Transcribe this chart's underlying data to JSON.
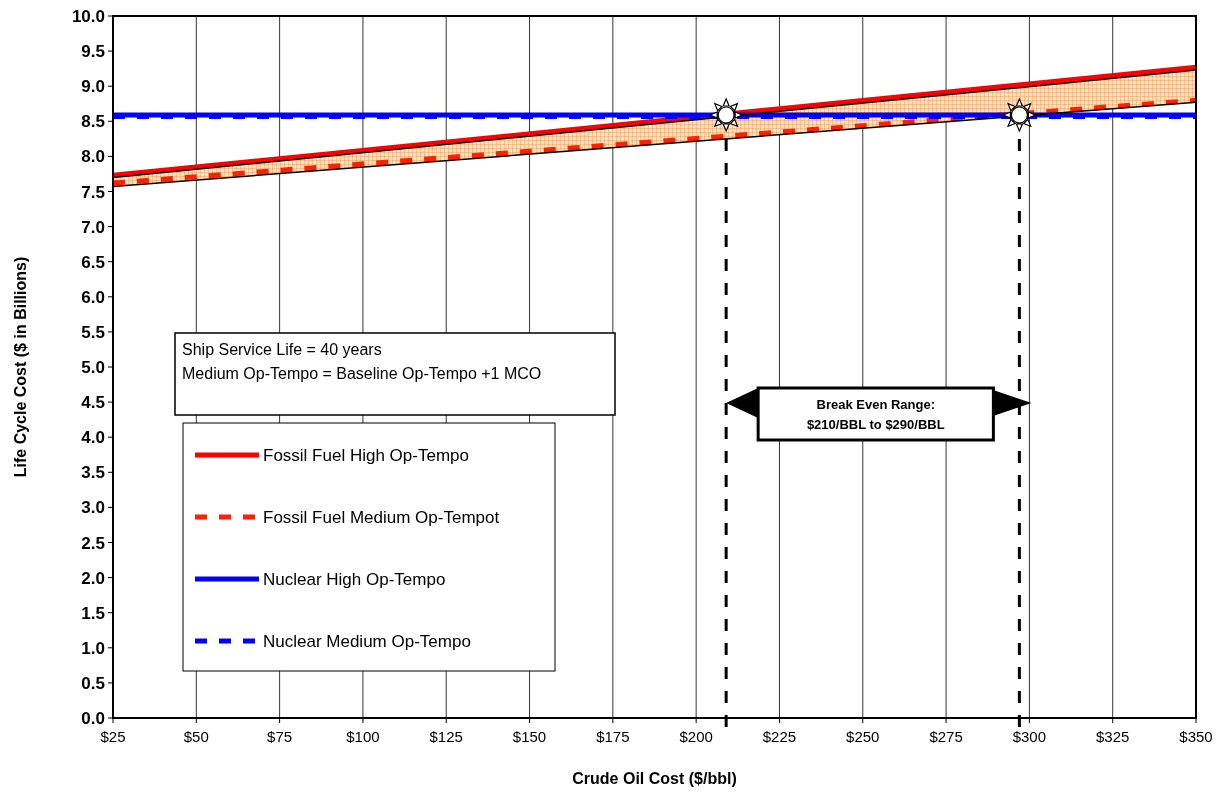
{
  "chart_data": {
    "type": "line",
    "xlabel": "Crude Oil Cost ($/bbl)",
    "ylabel": "Life Cycle Cost ($ in Billions)",
    "x": [
      25,
      350
    ],
    "series": [
      {
        "name": "Fossil Fuel High Op-Tempo",
        "color": "#ff0000",
        "line_style": "solid",
        "values": [
          7.73,
          9.27
        ]
      },
      {
        "name": "Fossil Fuel Medium Op-Tempot",
        "color": "#ff2000",
        "line_style": "dashed",
        "values": [
          7.62,
          8.8
        ],
        "lower": [
          7.57,
          8.77
        ],
        "upper": [
          7.7,
          9.23
        ]
      },
      {
        "name": "Nuclear High Op-Tempo",
        "color": "#0000ff",
        "line_style": "solid",
        "values": [
          8.59,
          8.59
        ]
      },
      {
        "name": "Nuclear Medium Op-Tempo",
        "color": "#0000ff",
        "line_style": "dashed",
        "values": [
          8.57,
          8.57
        ]
      },
      {
        "color": "#000000",
        "line_style": "solid",
        "values": [
          7.57,
          8.77
        ]
      },
      {
        "color": "#000000",
        "line_style": "solid",
        "values": [
          7.7,
          9.23
        ]
      }
    ],
    "xlim": [
      25,
      350
    ],
    "xticks": [
      {
        "value": 25,
        "label": "$25"
      },
      {
        "value": 50,
        "label": "$50"
      },
      {
        "value": 75,
        "label": "$75"
      },
      {
        "value": 100,
        "label": "$100"
      },
      {
        "value": 125,
        "label": "$125"
      },
      {
        "value": 150,
        "label": "$150"
      },
      {
        "value": 175,
        "label": "$175"
      },
      {
        "value": 200,
        "label": "$200"
      },
      {
        "value": 225,
        "label": "$225"
      },
      {
        "value": 250,
        "label": "$250"
      },
      {
        "value": 275,
        "label": "$275"
      },
      {
        "value": 300,
        "label": "$300"
      },
      {
        "value": 325,
        "label": "$325"
      },
      {
        "value": 350,
        "label": "$350"
      }
    ],
    "ylim": [
      0,
      10
    ],
    "yticks": [
      {
        "value": 0,
        "label": "0.0"
      },
      {
        "value": 0.5,
        "label": "0.5"
      },
      {
        "value": 1,
        "label": "1.0"
      },
      {
        "value": 1.5,
        "label": "1.5"
      },
      {
        "value": 2,
        "label": "2.0"
      },
      {
        "value": 2.5,
        "label": "2.5"
      },
      {
        "value": 3,
        "label": "3.0"
      },
      {
        "value": 3.5,
        "label": "3.5"
      },
      {
        "value": 4,
        "label": "4.0"
      },
      {
        "value": 4.5,
        "label": "4.5"
      },
      {
        "value": 5,
        "label": "5.0"
      },
      {
        "value": 5.5,
        "label": "5.5"
      },
      {
        "value": 6,
        "label": "6.0"
      },
      {
        "value": 6.5,
        "label": "6.5"
      },
      {
        "value": 7,
        "label": "7.0"
      },
      {
        "value": 7.5,
        "label": "7.5"
      },
      {
        "value": 8,
        "label": "8.0"
      },
      {
        "value": 8.5,
        "label": "8.5"
      },
      {
        "value": 9,
        "label": "9.0"
      },
      {
        "value": 9.5,
        "label": "9.5"
      },
      {
        "value": 10,
        "label": "10.0"
      }
    ],
    "ref_lines": [
      {
        "axis": "x",
        "value": 209,
        "color": "#000000",
        "line_style": "dashed"
      },
      {
        "axis": "x",
        "value": 297,
        "color": "#000000",
        "line_style": "dashed"
      }
    ],
    "annotations": [
      "Ship Service Life = 40 years",
      "Medium Op-Tempo = Baseline Op-Tempo +1 MCO",
      "Break Even Range:\n$210/BBL to $290/BBL"
    ],
    "grid": "x",
    "legend": "bottom left"
  }
}
